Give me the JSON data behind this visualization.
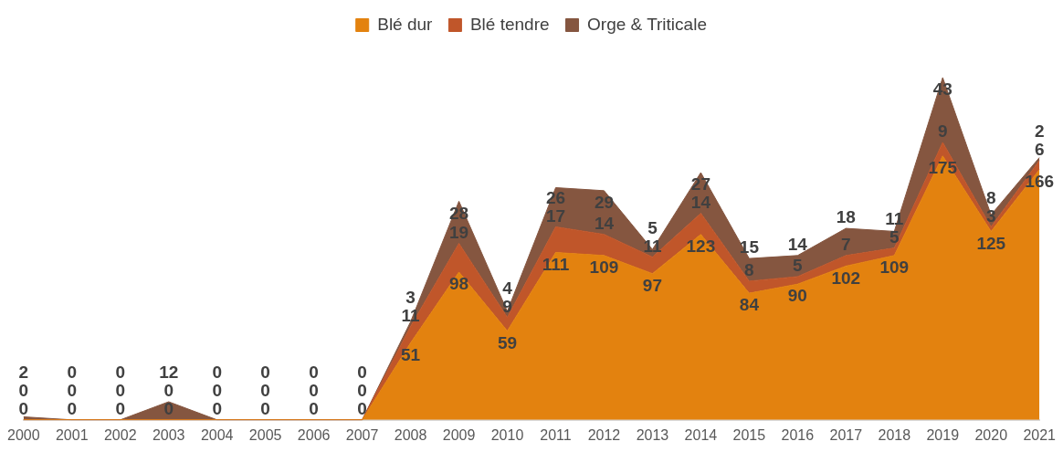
{
  "chart_data": {
    "type": "area",
    "stacked": true,
    "data_labels": true,
    "legend": "top",
    "grid": false,
    "categories": [
      "2000",
      "2001",
      "2002",
      "2003",
      "2004",
      "2005",
      "2006",
      "2007",
      "2008",
      "2009",
      "2010",
      "2011",
      "2012",
      "2013",
      "2014",
      "2015",
      "2016",
      "2017",
      "2018",
      "2019",
      "2020",
      "2021"
    ],
    "series": [
      {
        "name": "Blé dur",
        "color": "#e3820f",
        "values": [
          0,
          0,
          0,
          0,
          0,
          0,
          0,
          0,
          51,
          98,
          59,
          111,
          109,
          97,
          123,
          84,
          90,
          102,
          109,
          175,
          125,
          166
        ]
      },
      {
        "name": "Blé tendre",
        "color": "#c0562a",
        "values": [
          0,
          0,
          0,
          0,
          0,
          0,
          0,
          0,
          11,
          19,
          9,
          17,
          14,
          11,
          14,
          8,
          5,
          7,
          5,
          9,
          3,
          6
        ]
      },
      {
        "name": "Orge & Triticale",
        "color": "#855640",
        "values": [
          2,
          0,
          0,
          12,
          0,
          0,
          0,
          0,
          3,
          28,
          4,
          26,
          29,
          5,
          27,
          15,
          14,
          18,
          11,
          43,
          8,
          2
        ]
      }
    ]
  }
}
